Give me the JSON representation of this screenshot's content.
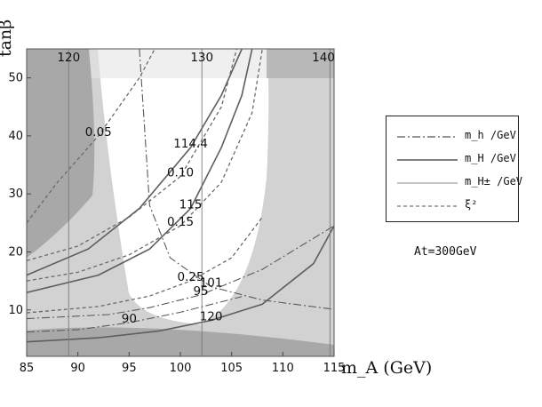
{
  "chart_data": {
    "type": "line",
    "xlabel": "m_A (GeV)",
    "ylabel": "tanβ",
    "xlim": [
      85,
      115
    ],
    "ylim": [
      2,
      55
    ],
    "xticks": [
      85,
      90,
      95,
      100,
      105,
      110,
      115
    ],
    "yticks": [
      10,
      20,
      30,
      40,
      50
    ],
    "regions": [
      {
        "name": "outer",
        "shade": "#d2d2d2"
      },
      {
        "name": "inner-allowed",
        "shade": "#ffffff"
      },
      {
        "name": "top-band",
        "shade": "#e4e4e4"
      },
      {
        "name": "dark-corners",
        "shade": "#a8a8a8"
      }
    ],
    "series": [
      {
        "name": "m_h /GeV",
        "style": "dash-dot",
        "contours": [
          {
            "label": "90",
            "points": [
              [
                85,
                6.2
              ],
              [
                90,
                6.6
              ],
              [
                95,
                7.8
              ],
              [
                100,
                9.6
              ],
              [
                106,
                12.3
              ]
            ]
          },
          {
            "label": "95",
            "points": [
              [
                85,
                8.5
              ],
              [
                93,
                9.2
              ],
              [
                97,
                10.4
              ],
              [
                102,
                12.6
              ],
              [
                108,
                17
              ],
              [
                115,
                24.5
              ]
            ]
          },
          {
            "label": "101",
            "points": [
              [
                96,
                55
              ],
              [
                97,
                28
              ],
              [
                99,
                19
              ],
              [
                103,
                14
              ],
              [
                108,
                11.7
              ],
              [
                115,
                10.1
              ]
            ]
          }
        ]
      },
      {
        "name": "m_H /GeV",
        "style": "solid",
        "contours": [
          {
            "label": "114.4",
            "points": [
              [
                85,
                16
              ],
              [
                91,
                20.5
              ],
              [
                96,
                27.5
              ],
              [
                101,
                38
              ],
              [
                104,
                47
              ],
              [
                106,
                55
              ]
            ]
          },
          {
            "label": "115",
            "points": [
              [
                85,
                13
              ],
              [
                92,
                16
              ],
              [
                97,
                20.5
              ],
              [
                101,
                27.5
              ],
              [
                104,
                38
              ],
              [
                106,
                47
              ],
              [
                107,
                55
              ]
            ]
          },
          {
            "label": "120",
            "points": [
              [
                85,
                4.5
              ],
              [
                92,
                5.2
              ],
              [
                98,
                6.4
              ],
              [
                103,
                8.2
              ],
              [
                108,
                11
              ],
              [
                113,
                18
              ],
              [
                115,
                24.5
              ]
            ]
          }
        ]
      },
      {
        "name": "m_H± /GeV",
        "style": "thin-solid",
        "contours": [
          {
            "label": "120",
            "points": [
              [
                89.1,
                2
              ],
              [
                89.1,
                55
              ]
            ]
          },
          {
            "label": "130",
            "points": [
              [
                102.1,
                2
              ],
              [
                102.1,
                55
              ]
            ]
          },
          {
            "label": "140",
            "points": [
              [
                114.6,
                2
              ],
              [
                114.6,
                55
              ]
            ]
          }
        ]
      },
      {
        "name": "ξ²",
        "style": "dashed",
        "contours": [
          {
            "label": "0.05",
            "points": [
              [
                85,
                25
              ],
              [
                88,
                32
              ],
              [
                92,
                40
              ],
              [
                96,
                50
              ],
              [
                97.5,
                55
              ]
            ]
          },
          {
            "label": "0.10",
            "points": [
              [
                85,
                18.5
              ],
              [
                90,
                21
              ],
              [
                95,
                26
              ],
              [
                100,
                33
              ],
              [
                104,
                45
              ],
              [
                105.5,
                55
              ]
            ]
          },
          {
            "label": "0.15",
            "points": [
              [
                85,
                15
              ],
              [
                90,
                16.5
              ],
              [
                95,
                19.5
              ],
              [
                100,
                24.5
              ],
              [
                104,
                32
              ],
              [
                107,
                44
              ],
              [
                108,
                55
              ]
            ]
          },
          {
            "label": "0.25",
            "points": [
              [
                85,
                9.5
              ],
              [
                92,
                10.6
              ],
              [
                97,
                12.4
              ],
              [
                101,
                15
              ],
              [
                105,
                19
              ],
              [
                108,
                26
              ]
            ]
          }
        ]
      }
    ],
    "curve_labels": [
      "120",
      "0.05",
      "130",
      "114.4",
      "115",
      "140",
      "0.10",
      "0.15",
      "0.25",
      "101",
      "95",
      "90",
      "120"
    ],
    "legend_position": "right",
    "annotation": "At=300GeV"
  },
  "legend": {
    "items": [
      {
        "label": "m_h /GeV",
        "style": "dash-dot"
      },
      {
        "label": "m_H /GeV",
        "style": "solid"
      },
      {
        "label": "m_H± /GeV",
        "style": "thin-solid"
      },
      {
        "label": "ξ²",
        "style": "dashed"
      }
    ]
  },
  "note": "At=300GeV"
}
